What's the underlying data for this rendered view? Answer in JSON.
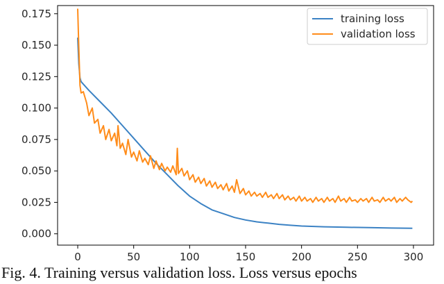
{
  "caption": "Fig. 4. Training versus validation loss. Loss versus epochs",
  "chart_data": {
    "type": "line",
    "title": "",
    "xlabel": "",
    "ylabel": "",
    "xlim": [
      -18,
      318
    ],
    "ylim": [
      -0.009,
      0.1815
    ],
    "xticks": [
      0,
      50,
      100,
      150,
      200,
      250,
      300
    ],
    "yticks": [
      0.0,
      0.025,
      0.05,
      0.075,
      0.1,
      0.125,
      0.15,
      0.175
    ],
    "ytick_labels": [
      "0.000",
      "0.025",
      "0.050",
      "0.075",
      "0.100",
      "0.125",
      "0.150",
      "0.175"
    ],
    "grid": false,
    "legend_position": "top-right",
    "colors": {
      "training": "#3b82c4",
      "validation": "#ff8c1a"
    },
    "series": [
      {
        "name": "training loss",
        "x": [
          0,
          1,
          2,
          3,
          5,
          10,
          20,
          30,
          40,
          50,
          60,
          70,
          80,
          90,
          100,
          110,
          120,
          130,
          140,
          150,
          160,
          170,
          180,
          190,
          200,
          220,
          240,
          260,
          280,
          299
        ],
        "values": [
          0.156,
          0.135,
          0.124,
          0.121,
          0.119,
          0.114,
          0.105,
          0.096,
          0.086,
          0.076,
          0.066,
          0.056,
          0.047,
          0.038,
          0.03,
          0.024,
          0.019,
          0.016,
          0.013,
          0.011,
          0.0095,
          0.0085,
          0.0075,
          0.0068,
          0.0062,
          0.0056,
          0.0052,
          0.0049,
          0.0046,
          0.0044
        ]
      },
      {
        "name": "validation loss",
        "x": [
          0,
          1,
          2,
          3,
          5,
          8,
          10,
          13,
          15,
          18,
          20,
          23,
          25,
          28,
          30,
          33,
          35,
          36,
          38,
          40,
          43,
          45,
          48,
          50,
          53,
          55,
          58,
          60,
          63,
          65,
          68,
          70,
          73,
          75,
          78,
          80,
          83,
          85,
          88,
          89,
          90,
          93,
          95,
          98,
          100,
          103,
          105,
          108,
          110,
          113,
          115,
          118,
          120,
          123,
          125,
          128,
          130,
          133,
          135,
          138,
          140,
          142,
          145,
          148,
          150,
          153,
          155,
          158,
          160,
          163,
          165,
          168,
          170,
          173,
          175,
          178,
          180,
          183,
          185,
          188,
          190,
          193,
          195,
          198,
          200,
          203,
          205,
          208,
          210,
          213,
          215,
          218,
          220,
          223,
          225,
          228,
          230,
          233,
          235,
          238,
          240,
          243,
          245,
          248,
          250,
          253,
          255,
          258,
          260,
          263,
          265,
          268,
          270,
          273,
          275,
          278,
          280,
          283,
          285,
          288,
          290,
          293,
          295,
          298,
          299
        ],
        "values": [
          0.179,
          0.148,
          0.118,
          0.112,
          0.113,
          0.104,
          0.094,
          0.1,
          0.088,
          0.091,
          0.08,
          0.086,
          0.075,
          0.083,
          0.074,
          0.08,
          0.07,
          0.086,
          0.068,
          0.072,
          0.063,
          0.075,
          0.061,
          0.065,
          0.058,
          0.066,
          0.057,
          0.06,
          0.055,
          0.062,
          0.052,
          0.058,
          0.051,
          0.056,
          0.05,
          0.053,
          0.049,
          0.054,
          0.047,
          0.068,
          0.048,
          0.052,
          0.046,
          0.05,
          0.043,
          0.047,
          0.041,
          0.045,
          0.04,
          0.044,
          0.038,
          0.042,
          0.037,
          0.041,
          0.036,
          0.039,
          0.035,
          0.04,
          0.034,
          0.038,
          0.033,
          0.043,
          0.032,
          0.036,
          0.031,
          0.034,
          0.03,
          0.033,
          0.03,
          0.032,
          0.029,
          0.033,
          0.029,
          0.031,
          0.028,
          0.032,
          0.028,
          0.031,
          0.027,
          0.03,
          0.027,
          0.029,
          0.026,
          0.03,
          0.026,
          0.029,
          0.026,
          0.028,
          0.025,
          0.029,
          0.026,
          0.028,
          0.025,
          0.029,
          0.026,
          0.028,
          0.025,
          0.03,
          0.026,
          0.028,
          0.025,
          0.029,
          0.026,
          0.027,
          0.025,
          0.028,
          0.026,
          0.028,
          0.025,
          0.029,
          0.026,
          0.027,
          0.025,
          0.029,
          0.026,
          0.028,
          0.026,
          0.029,
          0.025,
          0.028,
          0.026,
          0.029,
          0.027,
          0.025,
          0.026
        ]
      }
    ]
  }
}
